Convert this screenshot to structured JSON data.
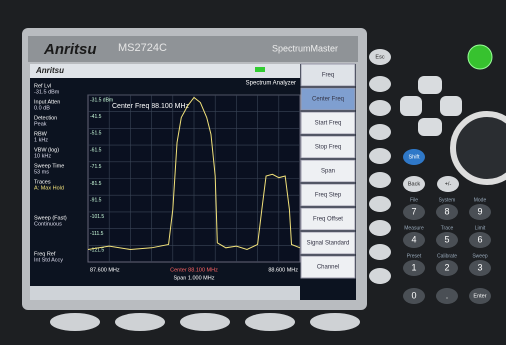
{
  "header": {
    "brand": "Anritsu",
    "model": "MS2724C",
    "product": "SpectrumMaster"
  },
  "screen": {
    "logo": "Anritsu",
    "mode": "Spectrum Analyzer",
    "center_label": "Center Freq 88.100 MHz",
    "params": [
      [
        "Ref Lvl",
        "-31.5 dBm"
      ],
      [
        "Input Atten",
        "0.0 dB"
      ],
      [
        "Detection",
        "Peak"
      ],
      [
        "RBW",
        "1 kHz"
      ],
      [
        "VBW (log)",
        "10 kHz"
      ],
      [
        "Sweep Time",
        "53 ms"
      ],
      [
        "Traces",
        "A: Max Hold"
      ],
      [
        "Sweep (Fast)",
        "Continuous"
      ],
      [
        "Freq Ref",
        "Int Std Accy"
      ]
    ],
    "start": "87.600 MHz",
    "center": "Center 88.100 MHz",
    "span": "Span 1.000 MHz",
    "stop": "88.600 MHz",
    "soft_keys": [
      "Freq",
      "Center Freq",
      "Start Freq",
      "Stop Freq",
      "Span",
      "Freq Step",
      "Freq Offset",
      "Signal Standard",
      "Channel"
    ]
  },
  "chart_data": {
    "type": "line",
    "xlim": [
      87.6,
      88.6
    ],
    "ylim": [
      -131.5,
      -31.5
    ],
    "yticks": [
      {
        "value": -31.5,
        "label": "-31.5 dBm"
      },
      -41.5,
      -51.5,
      -61.5,
      -71.5,
      -81.5,
      -91.5,
      -101.5,
      -111.5,
      -121.5
    ],
    "series": [
      {
        "name": "A: Max Hold",
        "color": "#f2e27a",
        "x": [
          87.6,
          87.7,
          87.8,
          87.9,
          87.98,
          88.0,
          88.02,
          88.04,
          88.07,
          88.1,
          88.13,
          88.16,
          88.18,
          88.2,
          88.21,
          88.25,
          88.3,
          88.35,
          88.4,
          88.42,
          88.44,
          88.47,
          88.5,
          88.53,
          88.55,
          88.56,
          88.6
        ],
        "values": [
          -124,
          -122,
          -124,
          -123,
          -121,
          -100,
          -60,
          -45,
          -38,
          -33,
          -36,
          -45,
          -55,
          -80,
          -120,
          -123,
          -122,
          -124,
          -121,
          -100,
          -80,
          -79,
          -81,
          -80,
          -100,
          -121,
          -123
        ]
      }
    ]
  },
  "keys": {
    "esc": "Esc",
    "shift": "Shift",
    "back": "Back",
    "sign": "+/-",
    "enter": "Enter",
    "digits": [
      "7",
      "8",
      "9",
      "4",
      "5",
      "6",
      "1",
      "2",
      "3",
      "0",
      "."
    ],
    "functions": [
      "File",
      "System",
      "Mode",
      "Measure",
      "Trace",
      "Limit",
      "Preset",
      "Calibrate",
      "Sweep"
    ]
  }
}
